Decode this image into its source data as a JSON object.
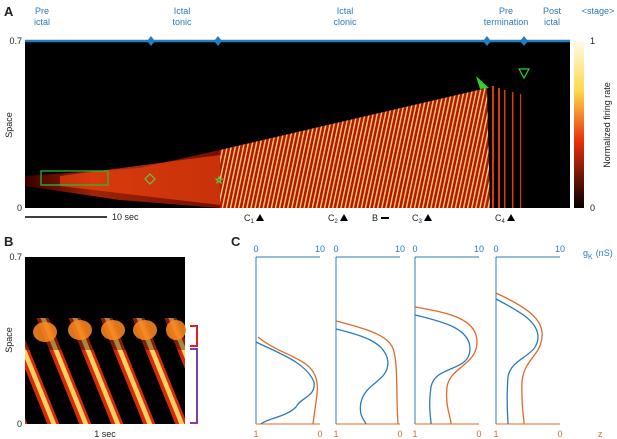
{
  "panel_a": {
    "label": "A",
    "stages": [
      [
        "Pre",
        "ictal"
      ],
      [
        "Ictal",
        "tonic"
      ],
      [
        "Ictal",
        "clonic"
      ],
      [
        "Pre",
        "termination"
      ],
      [
        "Post",
        "ictal"
      ]
    ],
    "stage_key": "<stage>",
    "y_axis_label": "Space",
    "y_ticks": [
      "0.7",
      "0"
    ],
    "scale_bar": "10 sec",
    "colorbar_label": "Normalized firing rate",
    "colorbar_ticks": [
      "1",
      "0"
    ],
    "markers": [
      {
        "letter": "C",
        "sub": "1"
      },
      {
        "letter": "C",
        "sub": "2"
      },
      {
        "letter": "B",
        "sub": ""
      },
      {
        "letter": "C",
        "sub": "3"
      },
      {
        "letter": "C",
        "sub": "4"
      }
    ]
  },
  "panel_b": {
    "label": "B",
    "y_axis_label": "Space",
    "y_ticks": [
      "0.7",
      "0"
    ],
    "scale_bar": "1 sec"
  },
  "panel_c": {
    "label": "C",
    "top_ticks": [
      "0",
      "10"
    ],
    "top_unit": {
      "symbol": "g",
      "sub": "K",
      "unit": "(nS)"
    },
    "bottom_ticks": [
      "1",
      "0"
    ],
    "bottom_unit": "z"
  }
}
